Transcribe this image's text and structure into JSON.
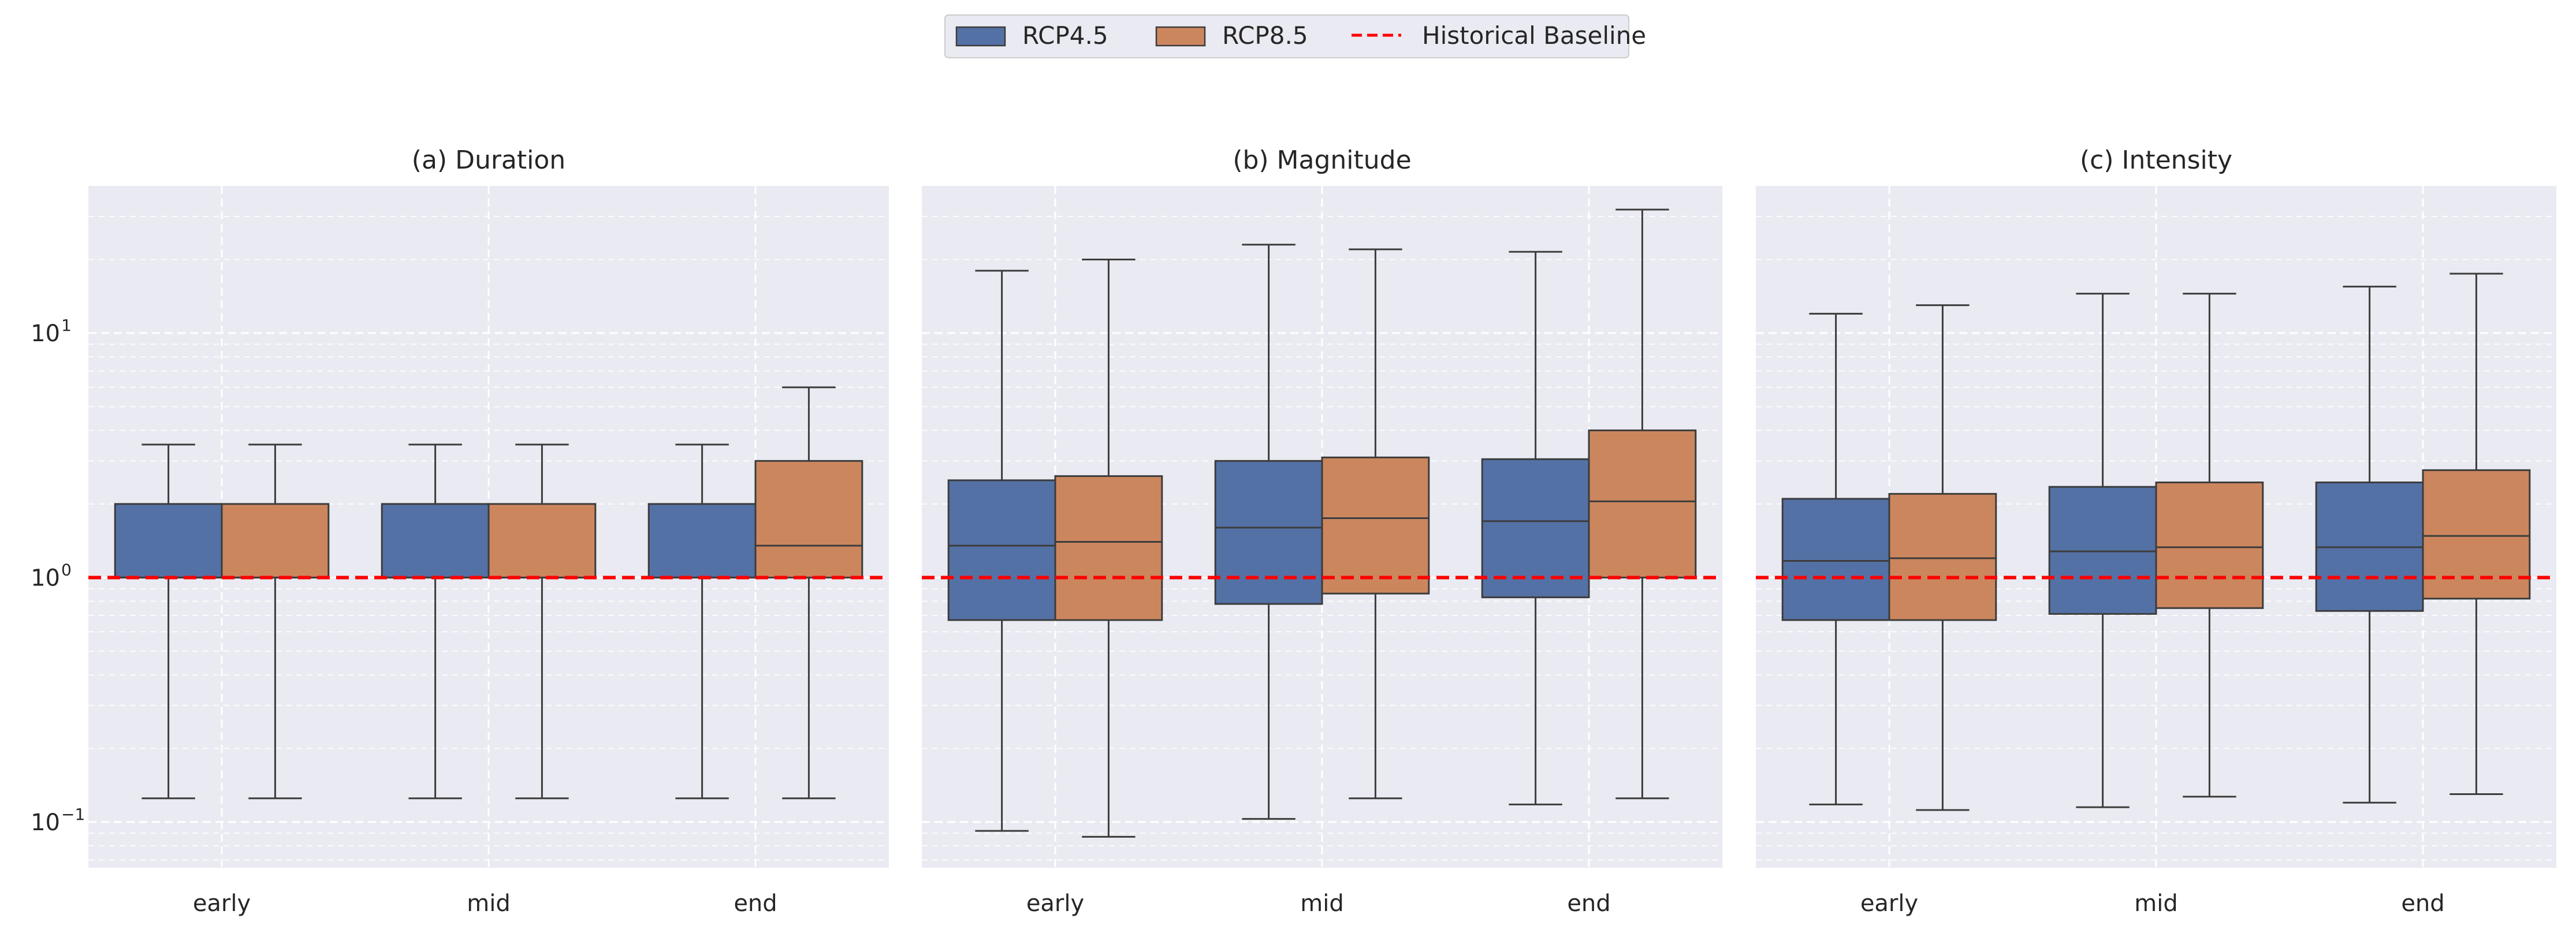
{
  "chart_data": {
    "type": "box",
    "y_scale": "log",
    "ylim": [
      0.065,
      40
    ],
    "y_ticks": [
      {
        "base": "10",
        "exp": "1",
        "value": 10
      },
      {
        "base": "10",
        "exp": "0",
        "value": 1
      },
      {
        "base": "10",
        "exp": "−1",
        "value": 0.1
      }
    ],
    "categories": [
      "early",
      "mid",
      "end"
    ],
    "grid": true,
    "legend": {
      "position": "top-center",
      "entries": [
        {
          "label": "RCP4.5",
          "type": "patch",
          "color": "#5471a5"
        },
        {
          "label": "RCP8.5",
          "type": "patch",
          "color": "#cc865e"
        },
        {
          "label": "Historical Baseline",
          "type": "dashed-line",
          "color": "#ff0000"
        }
      ]
    },
    "baseline": {
      "value": 1,
      "color": "#ff0000",
      "style": "dashed"
    },
    "colors": {
      "RCP4.5": "#5471a5",
      "RCP8.5": "#cc865e",
      "background": "#eaeaf2",
      "edge": "#3c3c3c"
    },
    "panels": [
      {
        "title": "(a) Duration",
        "show_y_tick_labels": true,
        "series": [
          {
            "name": "RCP4.5",
            "boxes": [
              {
                "min": 0.125,
                "q1": 1,
                "median": 1,
                "q3": 2,
                "max": 3.5
              },
              {
                "min": 0.125,
                "q1": 1,
                "median": 1,
                "q3": 2,
                "max": 3.5
              },
              {
                "min": 0.125,
                "q1": 1,
                "median": 1,
                "q3": 2,
                "max": 3.5
              }
            ]
          },
          {
            "name": "RCP8.5",
            "boxes": [
              {
                "min": 0.125,
                "q1": 1,
                "median": 1,
                "q3": 2,
                "max": 3.5
              },
              {
                "min": 0.125,
                "q1": 1,
                "median": 1,
                "q3": 2,
                "max": 3.5
              },
              {
                "min": 0.125,
                "q1": 1,
                "median": 1.35,
                "q3": 3,
                "max": 6
              }
            ]
          }
        ]
      },
      {
        "title": "(b) Magnitude",
        "show_y_tick_labels": false,
        "series": [
          {
            "name": "RCP4.5",
            "boxes": [
              {
                "min": 0.092,
                "q1": 0.67,
                "median": 1.35,
                "q3": 2.5,
                "max": 18
              },
              {
                "min": 0.103,
                "q1": 0.78,
                "median": 1.6,
                "q3": 3.0,
                "max": 23
              },
              {
                "min": 0.118,
                "q1": 0.83,
                "median": 1.7,
                "q3": 3.05,
                "max": 21.5
              }
            ]
          },
          {
            "name": "RCP8.5",
            "boxes": [
              {
                "min": 0.087,
                "q1": 0.67,
                "median": 1.4,
                "q3": 2.6,
                "max": 20
              },
              {
                "min": 0.125,
                "q1": 0.86,
                "median": 1.75,
                "q3": 3.1,
                "max": 22
              },
              {
                "min": 0.125,
                "q1": 1.0,
                "median": 2.05,
                "q3": 4.0,
                "max": 32
              }
            ]
          }
        ]
      },
      {
        "title": "(c) Intensity",
        "show_y_tick_labels": false,
        "series": [
          {
            "name": "RCP4.5",
            "boxes": [
              {
                "min": 0.118,
                "q1": 0.67,
                "median": 1.17,
                "q3": 2.1,
                "max": 12
              },
              {
                "min": 0.115,
                "q1": 0.71,
                "median": 1.28,
                "q3": 2.35,
                "max": 14.5
              },
              {
                "min": 0.12,
                "q1": 0.73,
                "median": 1.33,
                "q3": 2.45,
                "max": 15.5
              }
            ]
          },
          {
            "name": "RCP8.5",
            "boxes": [
              {
                "min": 0.112,
                "q1": 0.67,
                "median": 1.2,
                "q3": 2.2,
                "max": 13
              },
              {
                "min": 0.127,
                "q1": 0.75,
                "median": 1.33,
                "q3": 2.45,
                "max": 14.5
              },
              {
                "min": 0.13,
                "q1": 0.82,
                "median": 1.48,
                "q3": 2.75,
                "max": 17.5
              }
            ]
          }
        ]
      }
    ]
  }
}
